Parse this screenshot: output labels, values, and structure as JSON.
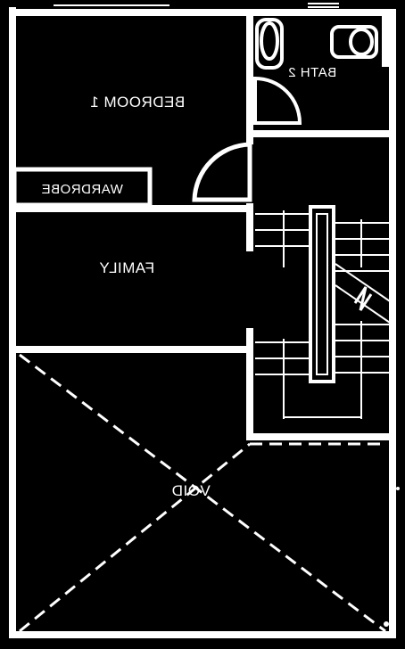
{
  "plan": {
    "colors": {
      "wall": "#ffffff",
      "floor": "#000000"
    },
    "rooms": {
      "bedroom": "BEDROOM 1",
      "bath": "BATH 2",
      "wardrobe": "WARDROBE",
      "family": "FAMILY",
      "void": "VOID"
    }
  }
}
